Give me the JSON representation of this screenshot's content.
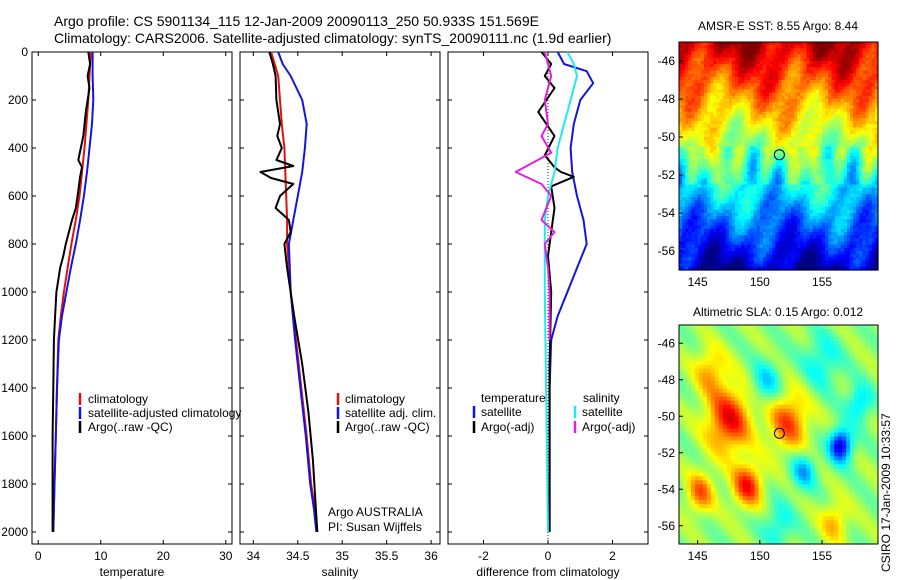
{
  "header": {
    "line1": "Argo profile: CS 5901134_115 12-Jan-2009 20090113_250 50.933S 151.569E",
    "line2": "Climatology: CARS2006. Satellite-adjusted climatology: synTS_20090111.nc (1.9d earlier)"
  },
  "side_label": "CSIRO 17-Jan-2009 10:33:57",
  "colors": {
    "climatology": "#e01010",
    "satellite": "#1414e0",
    "argo": "#000000",
    "satellite_sal": "#22e8f0",
    "argo_sal_adj": "#e020e0"
  },
  "chart_data": [
    {
      "id": "temperature",
      "type": "line",
      "xlabel": "temperature",
      "ylabel": "",
      "xlim": [
        -1,
        31
      ],
      "ylim": [
        2050,
        0
      ],
      "xticks": [
        "0",
        "10",
        "20",
        "30"
      ],
      "xtick_values": [
        0,
        10,
        20,
        30
      ],
      "yticks": [
        "0",
        "200",
        "400",
        "600",
        "800",
        "1000",
        "1200",
        "1400",
        "1600",
        "1800",
        "2000"
      ],
      "ytick_values": [
        0,
        200,
        400,
        600,
        800,
        1000,
        1200,
        1400,
        1600,
        1800,
        2000
      ],
      "legend": {
        "position": "lower-right",
        "entries": [
          "climatology",
          "satellite-adjusted climatology",
          "Argo(..raw -QC)"
        ]
      },
      "series": [
        {
          "name": "climatology",
          "color": "#e01010",
          "x": [
            8.4,
            8.2,
            8.0,
            7.7,
            7.4,
            7.0,
            6.6,
            6.0,
            5.3,
            4.7,
            4.1,
            3.6,
            3.2,
            3.0,
            2.8,
            2.6,
            2.5,
            2.4
          ],
          "y": [
            0,
            100,
            200,
            300,
            400,
            500,
            600,
            700,
            800,
            900,
            1000,
            1100,
            1200,
            1400,
            1600,
            1800,
            1900,
            2000
          ]
        },
        {
          "name": "satellite-adjusted climatology",
          "color": "#1414e0",
          "x": [
            8.7,
            8.7,
            8.8,
            8.6,
            8.2,
            7.8,
            7.3,
            6.7,
            6.0,
            5.2,
            4.5,
            3.8,
            3.3,
            3.0,
            2.8,
            2.6,
            2.5,
            2.4
          ],
          "y": [
            0,
            100,
            200,
            300,
            400,
            500,
            600,
            700,
            800,
            900,
            1000,
            1100,
            1200,
            1400,
            1600,
            1800,
            1900,
            2000
          ]
        },
        {
          "name": "Argo(..raw -QC)",
          "color": "#000000",
          "x": [
            8.0,
            8.3,
            7.9,
            8.2,
            7.6,
            7.2,
            6.4,
            7.0,
            6.7,
            6.3,
            6.0,
            5.4,
            4.9,
            4.4,
            4.0,
            3.5,
            3.2,
            2.9,
            2.7,
            2.5,
            2.4,
            2.3,
            2.3,
            2.3
          ],
          "y": [
            0,
            50,
            100,
            150,
            250,
            350,
            450,
            480,
            520,
            600,
            650,
            700,
            750,
            800,
            850,
            900,
            950,
            1000,
            1100,
            1200,
            1400,
            1600,
            1800,
            2000
          ]
        }
      ]
    },
    {
      "id": "salinity",
      "type": "line",
      "xlabel": "salinity",
      "ylabel": "",
      "xlim": [
        33.85,
        36.1
      ],
      "ylim": [
        2050,
        0
      ],
      "xticks": [
        "34",
        "34.5",
        "35",
        "35.5",
        "36"
      ],
      "xtick_values": [
        34,
        34.5,
        35,
        35.5,
        36
      ],
      "legend": {
        "position": "lower-right",
        "entries": [
          "climatology",
          "satellite adj. clim.",
          "Argo(..raw -QC)"
        ]
      },
      "annotation": [
        "Argo AUSTRALIA",
        "PI: Susan Wijffels"
      ],
      "series": [
        {
          "name": "climatology",
          "color": "#e01010",
          "x": [
            34.2,
            34.24,
            34.28,
            34.3,
            34.32,
            34.35,
            34.36,
            34.37,
            34.38,
            34.38,
            34.42,
            34.48,
            34.54,
            34.6,
            34.65,
            34.69,
            34.72
          ],
          "y": [
            0,
            50,
            100,
            200,
            300,
            400,
            500,
            600,
            700,
            800,
            1000,
            1200,
            1400,
            1600,
            1800,
            1900,
            2000
          ]
        },
        {
          "name": "satellite adj. clim.",
          "color": "#1414e0",
          "x": [
            34.28,
            34.33,
            34.42,
            34.55,
            34.6,
            34.58,
            34.55,
            34.5,
            34.45,
            34.4,
            34.42,
            34.47,
            34.53,
            34.59,
            34.64,
            34.68,
            34.71
          ],
          "y": [
            0,
            50,
            100,
            200,
            300,
            400,
            500,
            600,
            700,
            800,
            1000,
            1200,
            1400,
            1600,
            1800,
            1900,
            2000
          ]
        },
        {
          "name": "Argo(..raw -QC)",
          "color": "#000000",
          "x": [
            34.18,
            34.22,
            34.25,
            34.26,
            34.3,
            34.27,
            34.32,
            34.26,
            34.45,
            34.08,
            34.2,
            34.45,
            34.3,
            34.25,
            34.4,
            34.42,
            34.35,
            34.38,
            34.46,
            34.55,
            34.62,
            34.67,
            34.72
          ],
          "y": [
            0,
            50,
            100,
            200,
            300,
            350,
            400,
            450,
            475,
            500,
            525,
            550,
            600,
            650,
            700,
            750,
            800,
            900,
            1100,
            1300,
            1500,
            1700,
            2000
          ]
        }
      ]
    },
    {
      "id": "difference",
      "type": "line",
      "xlabel": "difference from climatology",
      "ylabel": "",
      "xlim": [
        -3.1,
        3.1
      ],
      "ylim": [
        2050,
        0
      ],
      "xticks": [
        "-2",
        "0",
        "2"
      ],
      "xtick_values": [
        -2,
        0,
        2
      ],
      "legend": {
        "position": "lower-center",
        "headers": [
          "temperature",
          "salinity"
        ],
        "entries_left": [
          "satellite",
          "Argo(-adj)"
        ],
        "entries_right": [
          "satellite",
          "Argo(-adj)"
        ]
      },
      "series": [
        {
          "name": "temperature satellite",
          "color": "#1414e0",
          "x": [
            0.3,
            0.5,
            1.2,
            1.4,
            1.0,
            0.8,
            0.7,
            0.75,
            0.9,
            1.1,
            1.2,
            0.9,
            0.6,
            0.3,
            0.1,
            0.05,
            0.05,
            0.05
          ],
          "y": [
            0,
            50,
            80,
            130,
            200,
            300,
            400,
            500,
            600,
            700,
            800,
            900,
            1000,
            1100,
            1200,
            1400,
            1700,
            2000
          ]
        },
        {
          "name": "temperature Argo(-adj)",
          "color": "#000000",
          "x": [
            -0.2,
            0.1,
            -0.1,
            0.2,
            -0.3,
            0.2,
            -0.1,
            0.2,
            0.4,
            0.8,
            0.1,
            0.2,
            0.1,
            0.0,
            0.1,
            0.05,
            0.05,
            0.05
          ],
          "y": [
            0,
            50,
            100,
            150,
            250,
            350,
            430,
            480,
            500,
            520,
            560,
            650,
            750,
            850,
            1000,
            1300,
            1700,
            2000
          ]
        },
        {
          "name": "salinity satellite",
          "color": "#22e8f0",
          "x": [
            0.6,
            0.8,
            0.9,
            0.7,
            0.5,
            0.3,
            0.2,
            0.0,
            -0.1,
            -0.1,
            -0.05,
            0.0
          ],
          "y": [
            0,
            50,
            100,
            200,
            300,
            400,
            500,
            600,
            700,
            1000,
            1500,
            2000
          ]
        },
        {
          "name": "salinity Argo(-adj)",
          "color": "#e020e0",
          "x": [
            -0.1,
            0.0,
            0.1,
            -0.1,
            0.0,
            -0.2,
            0.1,
            -1.0,
            -0.2,
            0.1,
            -0.2,
            0.2,
            -0.1,
            0.0,
            0.05,
            0.05
          ],
          "y": [
            0,
            50,
            100,
            200,
            300,
            350,
            420,
            500,
            550,
            600,
            700,
            750,
            800,
            900,
            1000,
            1200
          ]
        }
      ]
    },
    {
      "id": "sst_map",
      "type": "heatmap",
      "title": "AMSR-E SST: 8.55  Argo: 8.44",
      "xlim": [
        143.5,
        159.5
      ],
      "ylim": [
        -57,
        -45
      ],
      "xticks": [
        "145",
        "150",
        "155"
      ],
      "xtick_values": [
        145,
        150,
        155
      ],
      "yticks": [
        "-46",
        "-48",
        "-50",
        "-52",
        "-54",
        "-56"
      ],
      "ytick_values": [
        -46,
        -48,
        -50,
        -52,
        -54,
        -56
      ],
      "marker": {
        "lon": 151.569,
        "lat": -50.933
      }
    },
    {
      "id": "sla_map",
      "type": "heatmap",
      "title": "Altimetric SLA: 0.15  Argo: 0.012",
      "xlim": [
        143.5,
        159.5
      ],
      "ylim": [
        -57,
        -45
      ],
      "xticks": [
        "145",
        "150",
        "155"
      ],
      "xtick_values": [
        145,
        150,
        155
      ],
      "yticks": [
        "-46",
        "-48",
        "-50",
        "-52",
        "-54",
        "-56"
      ],
      "ytick_values": [
        -46,
        -48,
        -50,
        -52,
        -54,
        -56
      ],
      "marker": {
        "lon": 151.569,
        "lat": -50.933
      }
    }
  ]
}
